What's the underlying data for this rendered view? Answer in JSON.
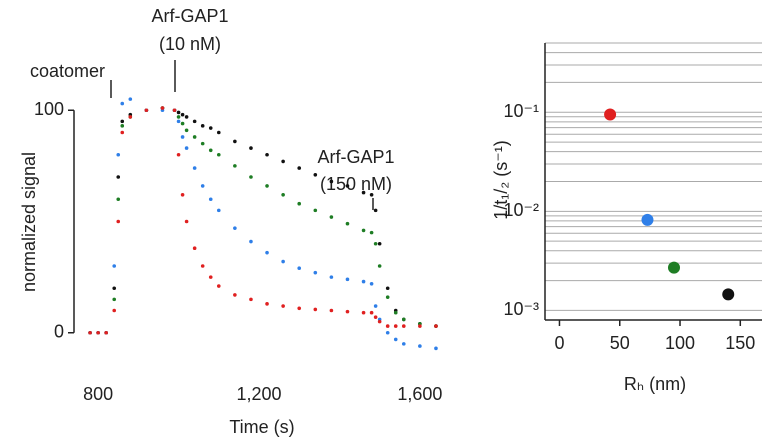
{
  "chart_data": [
    {
      "type": "line_dots",
      "x_label": "Time (s)",
      "y_label": "normalized signal",
      "annotations": [
        "coatomer",
        "Arf-GAP1",
        "(10 nM)",
        "Arf-GAP1",
        "(150 nM)"
      ],
      "x": [
        780,
        800,
        820,
        840,
        850,
        860,
        880,
        920,
        960,
        990,
        1000,
        1010,
        1020,
        1040,
        1060,
        1080,
        1100,
        1140,
        1180,
        1220,
        1260,
        1300,
        1340,
        1380,
        1420,
        1460,
        1480,
        1490,
        1500,
        1520,
        1540,
        1560,
        1600,
        1640
      ],
      "series": [
        {
          "color": "#111111",
          "values": [
            0,
            0,
            0,
            20,
            70,
            95,
            98,
            100,
            101,
            100,
            99,
            98,
            97,
            95,
            93,
            92,
            90,
            86,
            83,
            80,
            77,
            74,
            71,
            68,
            66,
            63,
            62,
            55,
            40,
            20,
            10,
            6,
            4,
            3
          ]
        },
        {
          "color": "#1e7d24",
          "values": [
            0,
            0,
            0,
            15,
            60,
            93,
            97,
            100,
            101,
            100,
            97,
            94,
            91,
            88,
            85,
            82,
            80,
            75,
            70,
            66,
            62,
            58,
            55,
            52,
            49,
            46,
            45,
            40,
            30,
            16,
            9,
            6,
            4,
            3
          ]
        },
        {
          "color": "#2f7fe8",
          "values": [
            0,
            0,
            0,
            30,
            80,
            103,
            105,
            100,
            100,
            100,
            95,
            88,
            83,
            74,
            66,
            60,
            55,
            47,
            41,
            36,
            32,
            29,
            27,
            25,
            24,
            23,
            22,
            12,
            6,
            0,
            -3,
            -5,
            -6,
            -7
          ]
        },
        {
          "color": "#e02020",
          "values": [
            0,
            0,
            0,
            10,
            50,
            90,
            97,
            100,
            101,
            100,
            80,
            62,
            50,
            38,
            30,
            25,
            21,
            17,
            15,
            13,
            12,
            11,
            10.5,
            10,
            9.5,
            9,
            9,
            7,
            5,
            3,
            3,
            3,
            3,
            3
          ]
        }
      ],
      "xlim": [
        740,
        1660
      ],
      "xticks": [
        800,
        {
          "value": 1200,
          "label": "1,200"
        },
        {
          "value": 1600,
          "label": "1,600"
        }
      ],
      "ylim": [
        -10,
        110
      ],
      "yticks": [
        0,
        100
      ]
    },
    {
      "type": "scatter",
      "log_y": true,
      "grid": true,
      "x_label": "Rₕ (nm)",
      "y_label": "1/t₁/₂ (s⁻¹)",
      "x": [
        42,
        73,
        95,
        140
      ],
      "values": [
        0.095,
        0.0082,
        0.0027,
        0.00145
      ],
      "colors": [
        "#e02020",
        "#2f7fe8",
        "#1e7d24",
        "#111111"
      ],
      "xlim": [
        -12,
        168
      ],
      "xticks": [
        0,
        50,
        100,
        150
      ],
      "ylim": [
        0.0008,
        0.5
      ],
      "yticks": [
        {
          "value": 0.001,
          "label": "10⁻³"
        },
        {
          "value": 0.01,
          "label": "10⁻²"
        },
        {
          "value": 0.1,
          "label": "10⁻¹"
        }
      ],
      "yticks_minor": [
        0.002,
        0.003,
        0.004,
        0.005,
        0.006,
        0.007,
        0.008,
        0.009,
        0.02,
        0.03,
        0.04,
        0.05,
        0.06,
        0.07,
        0.08,
        0.09,
        0.2,
        0.3,
        0.4,
        0.5
      ]
    }
  ]
}
